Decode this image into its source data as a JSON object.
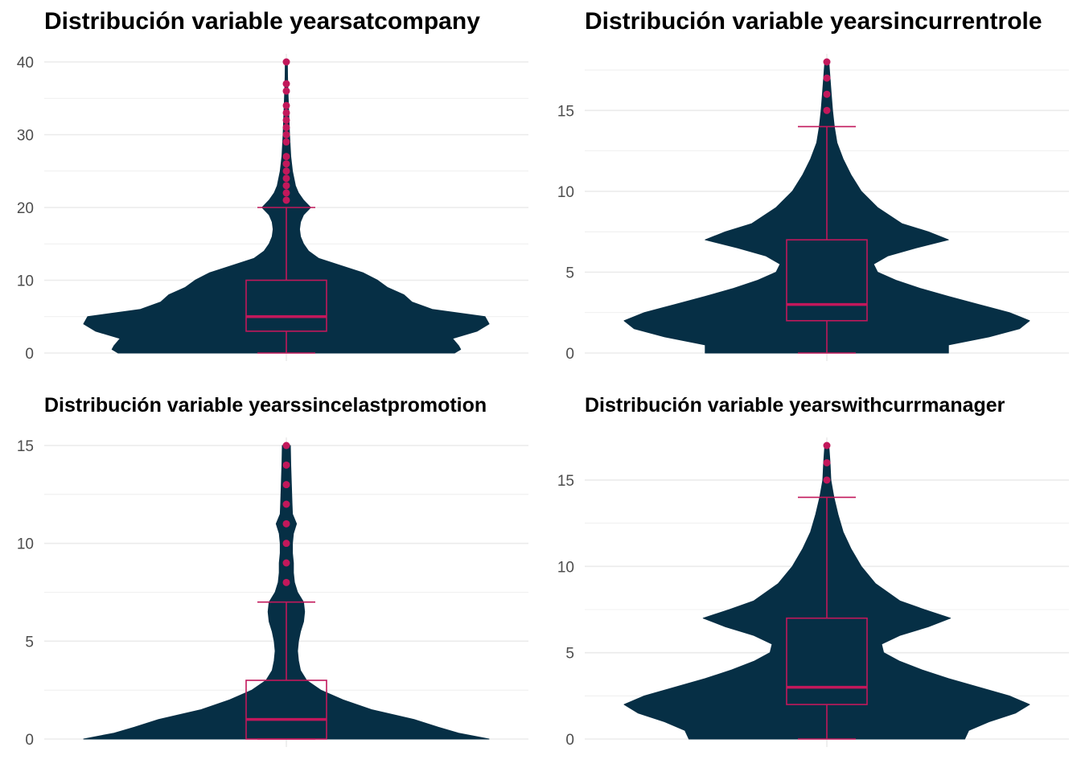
{
  "chart_data": [
    {
      "type": "violin",
      "title": "Distribución variable yearsatcompany",
      "xlabel": "",
      "ylabel": "",
      "ylim": [
        0,
        40
      ],
      "yticks": [
        0,
        10,
        20,
        30,
        40
      ],
      "box": {
        "min": 0,
        "q1": 3,
        "median": 5,
        "q3": 10,
        "upper_whisker": 20
      },
      "outliers": [
        21,
        22,
        23,
        24,
        25,
        26,
        27,
        29,
        30,
        31,
        32,
        33,
        34,
        36,
        37,
        40
      ],
      "density": [
        [
          0,
          0.83
        ],
        [
          0.5,
          0.86
        ],
        [
          1,
          0.85
        ],
        [
          2,
          0.82
        ],
        [
          3,
          0.94
        ],
        [
          4,
          1.0
        ],
        [
          5,
          0.98
        ],
        [
          6,
          0.72
        ],
        [
          7,
          0.62
        ],
        [
          8,
          0.58
        ],
        [
          9,
          0.5
        ],
        [
          10,
          0.45
        ],
        [
          11,
          0.38
        ],
        [
          12,
          0.27
        ],
        [
          13,
          0.16
        ],
        [
          14,
          0.11
        ],
        [
          15,
          0.085
        ],
        [
          16,
          0.07
        ],
        [
          17,
          0.065
        ],
        [
          18,
          0.07
        ],
        [
          19,
          0.085
        ],
        [
          20,
          0.12
        ],
        [
          21,
          0.085
        ],
        [
          22,
          0.06
        ],
        [
          23,
          0.045
        ],
        [
          25,
          0.03
        ],
        [
          27,
          0.022
        ],
        [
          30,
          0.016
        ],
        [
          33,
          0.012
        ],
        [
          36,
          0.008
        ],
        [
          38,
          0.006
        ],
        [
          40,
          0.005
        ]
      ],
      "grid": true,
      "grid_minor": true
    },
    {
      "type": "violin",
      "title": "Distribución variable yearsincurrentrole",
      "xlabel": "",
      "ylabel": "",
      "ylim": [
        0,
        18
      ],
      "yticks": [
        0,
        5,
        10,
        15
      ],
      "box": {
        "min": 0,
        "q1": 2,
        "median": 3,
        "q3": 7,
        "upper_whisker": 14
      },
      "outliers": [
        15,
        16,
        17,
        18
      ],
      "density": [
        [
          0,
          0.6
        ],
        [
          0.5,
          0.6
        ],
        [
          1,
          0.8
        ],
        [
          1.5,
          0.95
        ],
        [
          2,
          1.0
        ],
        [
          2.5,
          0.9
        ],
        [
          3,
          0.75
        ],
        [
          3.5,
          0.6
        ],
        [
          4,
          0.46
        ],
        [
          4.5,
          0.34
        ],
        [
          5,
          0.25
        ],
        [
          5.5,
          0.23
        ],
        [
          6,
          0.3
        ],
        [
          6.5,
          0.44
        ],
        [
          7,
          0.6
        ],
        [
          7.5,
          0.5
        ],
        [
          8,
          0.37
        ],
        [
          9,
          0.25
        ],
        [
          10,
          0.17
        ],
        [
          11,
          0.12
        ],
        [
          12,
          0.08
        ],
        [
          13,
          0.05
        ],
        [
          14,
          0.037
        ],
        [
          15,
          0.028
        ],
        [
          16,
          0.022
        ],
        [
          17,
          0.016
        ],
        [
          18,
          0.01
        ]
      ],
      "grid": true,
      "grid_minor": true
    },
    {
      "type": "violin",
      "title": "Distribución variable yearssincelastpromotion",
      "xlabel": "",
      "ylabel": "",
      "ylim": [
        0,
        15
      ],
      "yticks": [
        0,
        5,
        10,
        15
      ],
      "box": {
        "min": 0,
        "q1": 0,
        "median": 1,
        "q3": 3,
        "upper_whisker": 7
      },
      "outliers": [
        8,
        9,
        10,
        11,
        12,
        13,
        14,
        15
      ],
      "density": [
        [
          0,
          1.0
        ],
        [
          0.3,
          0.85
        ],
        [
          0.6,
          0.75
        ],
        [
          1,
          0.63
        ],
        [
          1.5,
          0.42
        ],
        [
          2,
          0.28
        ],
        [
          2.5,
          0.17
        ],
        [
          3,
          0.1
        ],
        [
          3.5,
          0.07
        ],
        [
          4,
          0.06
        ],
        [
          4.5,
          0.055
        ],
        [
          5,
          0.06
        ],
        [
          5.5,
          0.07
        ],
        [
          6,
          0.085
        ],
        [
          6.5,
          0.09
        ],
        [
          7,
          0.085
        ],
        [
          7.5,
          0.055
        ],
        [
          8,
          0.04
        ],
        [
          8.5,
          0.035
        ],
        [
          9,
          0.035
        ],
        [
          9.5,
          0.03
        ],
        [
          10,
          0.03
        ],
        [
          10.5,
          0.035
        ],
        [
          11,
          0.05
        ],
        [
          11.5,
          0.03
        ],
        [
          12,
          0.028
        ],
        [
          13,
          0.025
        ],
        [
          14,
          0.022
        ],
        [
          15,
          0.02
        ]
      ],
      "grid": true,
      "grid_minor": true
    },
    {
      "type": "violin",
      "title": "Distribución variable yearswithcurrmanager",
      "xlabel": "",
      "ylabel": "",
      "ylim": [
        0,
        17
      ],
      "yticks": [
        0,
        5,
        10,
        15
      ],
      "box": {
        "min": 0,
        "q1": 2,
        "median": 3,
        "q3": 7,
        "upper_whisker": 14
      },
      "outliers": [
        15,
        16,
        17
      ],
      "density": [
        [
          0,
          0.68
        ],
        [
          0.5,
          0.7
        ],
        [
          1,
          0.8
        ],
        [
          1.5,
          0.93
        ],
        [
          2,
          1.0
        ],
        [
          2.5,
          0.9
        ],
        [
          3,
          0.75
        ],
        [
          3.5,
          0.6
        ],
        [
          4,
          0.47
        ],
        [
          4.5,
          0.36
        ],
        [
          5,
          0.28
        ],
        [
          5.5,
          0.27
        ],
        [
          6,
          0.36
        ],
        [
          6.5,
          0.5
        ],
        [
          7,
          0.61
        ],
        [
          7.5,
          0.48
        ],
        [
          8,
          0.36
        ],
        [
          9,
          0.24
        ],
        [
          10,
          0.17
        ],
        [
          11,
          0.12
        ],
        [
          12,
          0.08
        ],
        [
          13,
          0.055
        ],
        [
          14,
          0.035
        ],
        [
          15,
          0.02
        ],
        [
          16,
          0.016
        ],
        [
          17,
          0.01
        ]
      ],
      "grid": true,
      "grid_minor": true
    }
  ],
  "colors": {
    "violin_fill": "#062f45",
    "box_line": "#c2185b",
    "outlier": "#c2185b",
    "grid": "#ebebeb",
    "tick_text": "#4d4d4d"
  }
}
